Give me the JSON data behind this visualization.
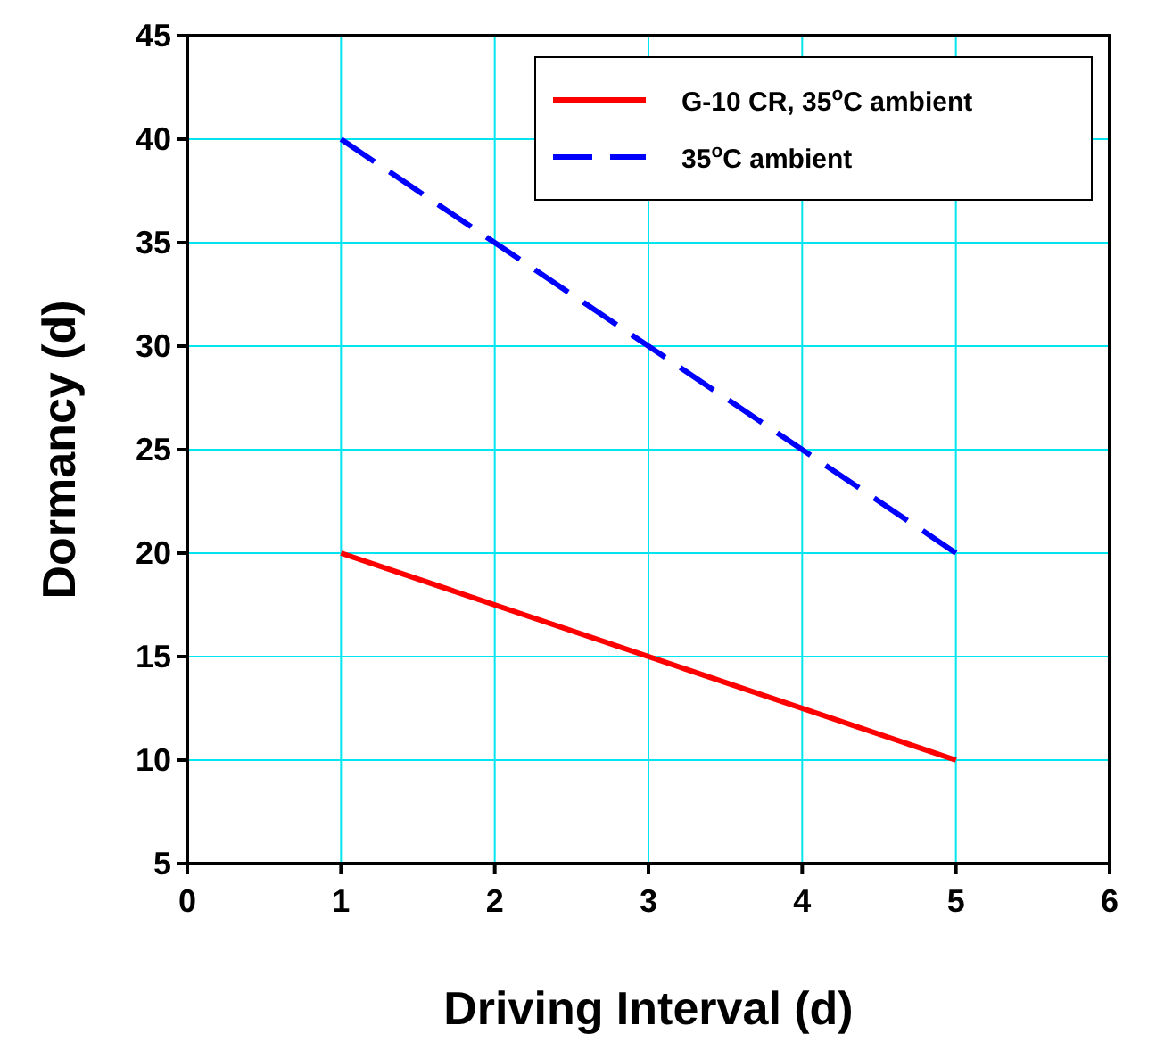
{
  "chart_data": {
    "type": "line",
    "xlabel": "Driving Interval (d)",
    "ylabel": "Dormancy (d)",
    "x": [
      1,
      5
    ],
    "series": [
      {
        "name": "G-10 CR, 35$^{o}$C ambient",
        "color": "#ff0000",
        "values": [
          20,
          10
        ],
        "line_style": "solid"
      },
      {
        "name": "35$^{o}$C ambient",
        "color": "#0000ff",
        "values": [
          40,
          20
        ],
        "line_style": "dashed"
      }
    ],
    "xlim": [
      0,
      6
    ],
    "xticks": [
      0,
      1,
      2,
      3,
      4,
      5,
      6
    ],
    "ylim": [
      5,
      45
    ],
    "yticks": [
      5,
      10,
      15,
      20,
      25,
      30,
      35,
      40,
      45
    ],
    "grid": true,
    "legend": "top right",
    "marker": "none"
  }
}
